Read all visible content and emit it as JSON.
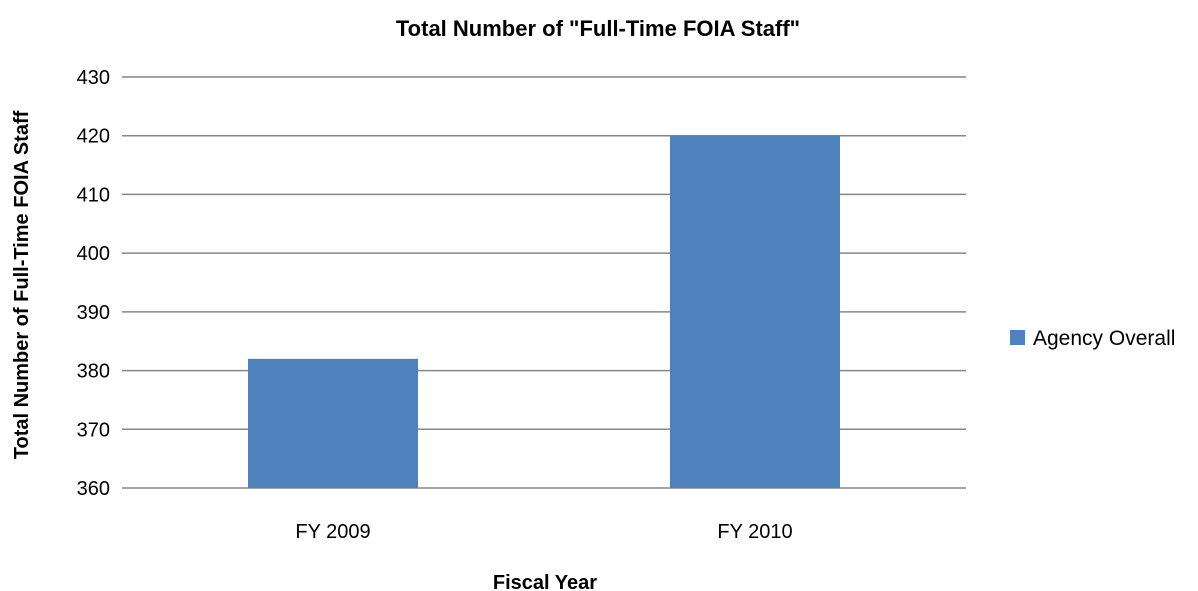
{
  "chart_data": {
    "type": "bar",
    "title": "Total Number of \"Full-Time FOIA Staff\"",
    "xlabel": "Fiscal Year",
    "ylabel": "Total Number of Full-Time FOIA Staff",
    "categories": [
      "FY 2009",
      "FY 2010"
    ],
    "series": [
      {
        "name": "Agency Overall",
        "values": [
          382,
          420
        ],
        "color": "#4f81bd"
      }
    ],
    "ylim": [
      360,
      430
    ],
    "yticks": [
      360,
      370,
      380,
      390,
      400,
      410,
      420,
      430
    ],
    "grid": true,
    "legend_position": "right"
  }
}
